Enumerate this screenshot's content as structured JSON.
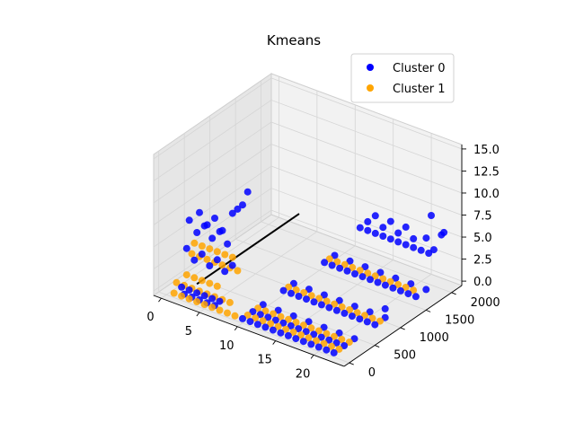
{
  "chart_data": {
    "type": "scatter",
    "dimensions": 3,
    "title": "Kmeans",
    "xlabel": "",
    "ylabel": "",
    "zlabel": "",
    "xlim": [
      -1,
      24
    ],
    "ylim": [
      -100,
      2200
    ],
    "zlim": [
      -0.5,
      15.5
    ],
    "x_ticks": [
      "0",
      "5",
      "10",
      "15",
      "20"
    ],
    "y_ticks": [
      "0",
      "500",
      "1000",
      "1500",
      "2000"
    ],
    "z_ticks": [
      "0.0",
      "2.5",
      "5.0",
      "7.5",
      "10.0",
      "12.5",
      "15.0"
    ],
    "grid": true,
    "legend_position": "top-right",
    "series": [
      {
        "name": "Cluster 0",
        "color": "#0000ff",
        "points": [
          [
            2,
            100,
            5
          ],
          [
            3,
            100,
            4
          ],
          [
            4,
            100,
            5
          ],
          [
            5,
            100,
            4
          ],
          [
            6,
            100,
            5
          ],
          [
            7,
            100,
            4
          ],
          [
            8,
            100,
            5
          ],
          [
            2,
            150,
            8
          ],
          [
            3,
            200,
            9
          ],
          [
            4,
            150,
            8
          ],
          [
            5,
            200,
            9
          ],
          [
            6,
            150,
            8
          ],
          [
            7,
            250,
            10
          ],
          [
            8,
            200,
            11
          ],
          [
            9,
            150,
            12
          ],
          [
            10,
            100,
            14
          ],
          [
            2,
            300,
            6
          ],
          [
            3,
            350,
            7
          ],
          [
            4,
            300,
            6
          ],
          [
            5,
            350,
            7
          ],
          [
            6,
            300,
            6
          ],
          [
            2,
            0,
            1
          ],
          [
            3,
            0,
            1
          ],
          [
            4,
            0,
            1
          ],
          [
            5,
            0,
            1
          ],
          [
            6,
            0,
            1
          ],
          [
            7,
            0,
            1
          ],
          [
            2,
            50,
            0
          ],
          [
            3,
            50,
            0
          ],
          [
            4,
            50,
            0
          ],
          [
            5,
            50,
            0
          ],
          [
            6,
            50,
            0
          ],
          [
            10,
            0,
            0
          ],
          [
            11,
            0,
            0
          ],
          [
            12,
            0,
            0
          ],
          [
            13,
            0,
            0
          ],
          [
            14,
            0,
            0
          ],
          [
            15,
            0,
            0
          ],
          [
            16,
            0,
            0
          ],
          [
            17,
            0,
            0
          ],
          [
            18,
            0,
            0
          ],
          [
            19,
            0,
            0
          ],
          [
            20,
            0,
            0
          ],
          [
            21,
            0,
            0
          ],
          [
            22,
            0,
            0
          ],
          [
            10,
            200,
            0
          ],
          [
            11,
            200,
            0
          ],
          [
            12,
            200,
            0
          ],
          [
            13,
            200,
            0
          ],
          [
            14,
            200,
            0
          ],
          [
            15,
            200,
            0
          ],
          [
            16,
            200,
            0
          ],
          [
            17,
            200,
            0
          ],
          [
            18,
            200,
            0
          ],
          [
            19,
            200,
            0
          ],
          [
            20,
            200,
            0
          ],
          [
            21,
            200,
            0
          ],
          [
            22,
            200,
            0
          ],
          [
            10,
            400,
            0
          ],
          [
            12,
            400,
            0
          ],
          [
            14,
            400,
            0
          ],
          [
            16,
            400,
            0
          ],
          [
            18,
            400,
            0
          ],
          [
            20,
            400,
            0
          ],
          [
            22,
            400,
            0
          ],
          [
            10,
            800,
            0
          ],
          [
            11,
            800,
            0
          ],
          [
            12,
            800,
            0
          ],
          [
            13,
            800,
            0
          ],
          [
            14,
            800,
            0
          ],
          [
            15,
            800,
            0
          ],
          [
            16,
            800,
            0
          ],
          [
            17,
            800,
            0
          ],
          [
            18,
            800,
            0
          ],
          [
            19,
            800,
            0
          ],
          [
            20,
            800,
            0
          ],
          [
            21,
            800,
            0
          ],
          [
            22,
            800,
            0
          ],
          [
            10,
            1000,
            0
          ],
          [
            12,
            1000,
            0
          ],
          [
            14,
            1000,
            0
          ],
          [
            16,
            1000,
            0
          ],
          [
            18,
            1000,
            0
          ],
          [
            20,
            1000,
            0
          ],
          [
            22,
            1000,
            0
          ],
          [
            10,
            1600,
            0
          ],
          [
            11,
            1600,
            0
          ],
          [
            12,
            1600,
            0
          ],
          [
            13,
            1600,
            0
          ],
          [
            14,
            1600,
            0
          ],
          [
            15,
            1600,
            0
          ],
          [
            16,
            1600,
            0
          ],
          [
            17,
            1600,
            0
          ],
          [
            18,
            1600,
            0
          ],
          [
            19,
            1600,
            0
          ],
          [
            20,
            1600,
            0
          ],
          [
            21,
            1600,
            0
          ],
          [
            22,
            1600,
            0
          ],
          [
            10,
            1800,
            0
          ],
          [
            12,
            1800,
            0
          ],
          [
            14,
            1800,
            0
          ],
          [
            16,
            1800,
            0
          ],
          [
            18,
            1800,
            0
          ],
          [
            20,
            1800,
            0
          ],
          [
            22,
            1800,
            0
          ],
          [
            12,
            2000,
            3
          ],
          [
            13,
            2000,
            3
          ],
          [
            14,
            2000,
            3
          ],
          [
            15,
            2000,
            3
          ],
          [
            16,
            2000,
            3
          ],
          [
            17,
            2000,
            3
          ],
          [
            18,
            2000,
            3
          ],
          [
            19,
            2000,
            3
          ],
          [
            20,
            2000,
            3
          ],
          [
            21,
            2000,
            3
          ],
          [
            13,
            2000,
            4
          ],
          [
            15,
            2000,
            4
          ],
          [
            17,
            2000,
            4
          ],
          [
            19,
            2000,
            4
          ],
          [
            14,
            2000,
            5
          ],
          [
            16,
            2000,
            5
          ],
          [
            18,
            2000,
            5
          ],
          [
            22,
            1900,
            8
          ],
          [
            23,
            2000,
            6
          ],
          [
            22,
            2100,
            5
          ],
          [
            20,
            2100,
            4
          ],
          [
            21,
            2100,
            3
          ],
          [
            22,
            1000,
            1
          ]
        ]
      },
      {
        "name": "Cluster 1",
        "color": "#ffa500",
        "points": [
          [
            2,
            200,
            4
          ],
          [
            3,
            200,
            4
          ],
          [
            4,
            200,
            4
          ],
          [
            5,
            200,
            4
          ],
          [
            6,
            200,
            4
          ],
          [
            7,
            200,
            4
          ],
          [
            8,
            200,
            4
          ],
          [
            2,
            250,
            5
          ],
          [
            3,
            250,
            5
          ],
          [
            4,
            250,
            5
          ],
          [
            5,
            250,
            5
          ],
          [
            6,
            250,
            5
          ],
          [
            7,
            250,
            5
          ],
          [
            2,
            100,
            2
          ],
          [
            3,
            100,
            2
          ],
          [
            4,
            100,
            2
          ],
          [
            5,
            100,
            2
          ],
          [
            6,
            100,
            2
          ],
          [
            1,
            0,
            0
          ],
          [
            2,
            0,
            0
          ],
          [
            3,
            0,
            0
          ],
          [
            4,
            0,
            0
          ],
          [
            5,
            0,
            0
          ],
          [
            6,
            0,
            0
          ],
          [
            7,
            0,
            0
          ],
          [
            8,
            0,
            0
          ],
          [
            9,
            0,
            0
          ],
          [
            1,
            50,
            1
          ],
          [
            2,
            50,
            1
          ],
          [
            3,
            50,
            1
          ],
          [
            4,
            50,
            1
          ],
          [
            5,
            50,
            1
          ],
          [
            6,
            50,
            1
          ],
          [
            7,
            50,
            1
          ],
          [
            8,
            50,
            1
          ],
          [
            10,
            100,
            0
          ],
          [
            11,
            100,
            0
          ],
          [
            12,
            100,
            0
          ],
          [
            13,
            100,
            0
          ],
          [
            14,
            100,
            0
          ],
          [
            15,
            100,
            0
          ],
          [
            16,
            100,
            0
          ],
          [
            17,
            100,
            0
          ],
          [
            18,
            100,
            0
          ],
          [
            19,
            100,
            0
          ],
          [
            20,
            100,
            0
          ],
          [
            21,
            100,
            0
          ],
          [
            22,
            100,
            0
          ],
          [
            10,
            300,
            0
          ],
          [
            11,
            300,
            0
          ],
          [
            12,
            300,
            0
          ],
          [
            13,
            300,
            0
          ],
          [
            14,
            300,
            0
          ],
          [
            15,
            300,
            0
          ],
          [
            16,
            300,
            0
          ],
          [
            17,
            300,
            0
          ],
          [
            18,
            300,
            0
          ],
          [
            19,
            300,
            0
          ],
          [
            20,
            300,
            0
          ],
          [
            21,
            300,
            0
          ],
          [
            22,
            300,
            0
          ],
          [
            10,
            900,
            0
          ],
          [
            11,
            900,
            0
          ],
          [
            12,
            900,
            0
          ],
          [
            13,
            900,
            0
          ],
          [
            14,
            900,
            0
          ],
          [
            15,
            900,
            0
          ],
          [
            16,
            900,
            0
          ],
          [
            17,
            900,
            0
          ],
          [
            18,
            900,
            0
          ],
          [
            19,
            900,
            0
          ],
          [
            20,
            900,
            0
          ],
          [
            21,
            900,
            0
          ],
          [
            22,
            900,
            0
          ],
          [
            10,
            1700,
            0
          ],
          [
            11,
            1700,
            0
          ],
          [
            12,
            1700,
            0
          ],
          [
            13,
            1700,
            0
          ],
          [
            14,
            1700,
            0
          ],
          [
            15,
            1700,
            0
          ],
          [
            16,
            1700,
            0
          ],
          [
            17,
            1700,
            0
          ],
          [
            18,
            1700,
            0
          ],
          [
            19,
            1700,
            0
          ],
          [
            20,
            1700,
            0
          ],
          [
            21,
            1700,
            0
          ]
        ]
      }
    ],
    "lines": [
      {
        "color": "#000000",
        "from": [
          4,
          0,
          2
        ],
        "to": [
          4,
          2000,
          2
        ]
      }
    ]
  }
}
